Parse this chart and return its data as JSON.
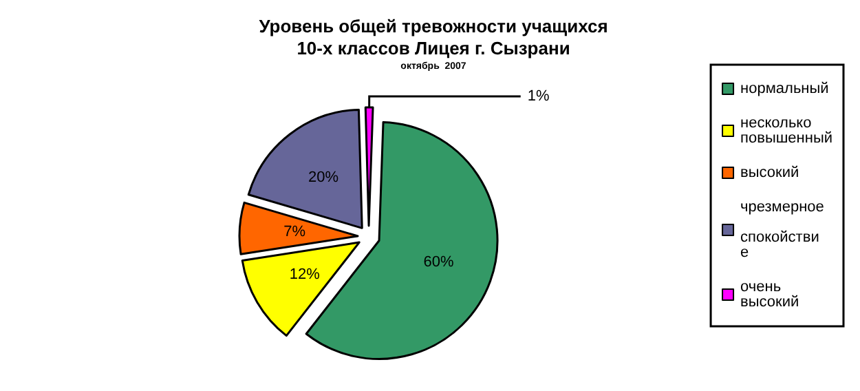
{
  "chart_data": {
    "type": "pie",
    "title": "Уровень общей тревожности учащихся\n10-х классов Лицея г. Сызрани",
    "subtitle": "октябрь  2007",
    "categories": [
      "нормальный",
      "несколько повышенный",
      "высокий",
      "чрезмерное спокойствие",
      "очень высокий"
    ],
    "values": [
      60,
      12,
      7,
      20,
      1
    ],
    "colors": [
      "#339966",
      "#ffff00",
      "#ff6600",
      "#666699",
      "#ff00ff"
    ],
    "value_labels": [
      "60%",
      "12%",
      "7%",
      "20%",
      "1%"
    ],
    "legend": "right"
  }
}
